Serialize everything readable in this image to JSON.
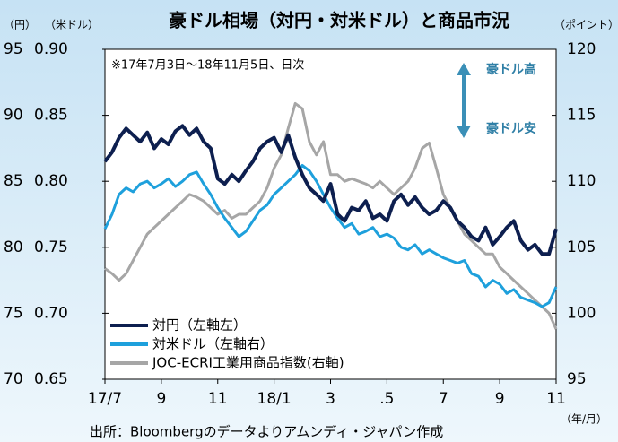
{
  "chart_data": {
    "type": "line",
    "title": "豪ドル相場（対円・対米ドル）と商品市況",
    "y_unit": "（円）",
    "y3_unit": "（米ドル）",
    "y2_unit": "（ポイント）",
    "x_unit": "（年/月）",
    "note": "※17年7月3日～18年11月5日、日次",
    "annotations": [
      "豪ドル高",
      "豪ドル安"
    ],
    "source": "出所：Bloombergのデータよりアムンディ・ジャパン作成",
    "legend": "lower left",
    "xlim": [
      0,
      16
    ],
    "xticks": [
      {
        "value": 0,
        "label": "17/7"
      },
      {
        "value": 2,
        "label": "9"
      },
      {
        "value": 4,
        "label": "11"
      },
      {
        "value": 6,
        "label": "18/1"
      },
      {
        "value": 8,
        "label": "3"
      },
      {
        "value": 10,
        "label": ".5"
      },
      {
        "value": 12,
        "label": "7"
      },
      {
        "value": 14,
        "label": "9"
      },
      {
        "value": 16,
        "label": "11"
      }
    ],
    "ylim": [
      70,
      95
    ],
    "yticks": [
      70,
      75,
      80,
      85,
      90,
      95
    ],
    "y3lim": [
      0.65,
      0.9
    ],
    "y3ticks": [
      0.65,
      {
        "value": 0.7,
        "label": "0.70"
      },
      0.75,
      {
        "value": 0.8,
        "label": "0.80"
      },
      0.85,
      {
        "value": 0.9,
        "label": "0.90"
      }
    ],
    "y2lim": [
      95,
      120
    ],
    "y2ticks": [
      95,
      100,
      105,
      110,
      115,
      120
    ],
    "x": [
      0,
      0.25,
      0.5,
      0.75,
      1,
      1.25,
      1.5,
      1.75,
      2,
      2.25,
      2.5,
      2.75,
      3,
      3.25,
      3.5,
      3.75,
      4,
      4.25,
      4.5,
      4.75,
      5,
      5.25,
      5.5,
      5.75,
      6,
      6.25,
      6.5,
      6.75,
      7,
      7.25,
      7.5,
      7.75,
      8,
      8.25,
      8.5,
      8.75,
      9,
      9.25,
      9.5,
      9.75,
      10,
      10.25,
      10.5,
      10.75,
      11,
      11.25,
      11.5,
      11.75,
      12,
      12.25,
      12.5,
      12.75,
      13,
      13.25,
      13.5,
      13.75,
      14,
      14.25,
      14.5,
      14.75,
      15,
      15.25,
      15.5,
      15.75,
      16
    ],
    "series": [
      {
        "name": "JOC-ECRI工業用商品指数(右軸)",
        "color": "#a6a6a6",
        "axis": "y2",
        "values": [
          103.4,
          103,
          102.5,
          103,
          104,
          105,
          106,
          106.5,
          107,
          107.5,
          108,
          108.5,
          109,
          108.8,
          108.5,
          108,
          107.5,
          107.8,
          107.2,
          107.5,
          107.5,
          108,
          108.5,
          109.5,
          111,
          112,
          114,
          115.9,
          115.5,
          113,
          112,
          113,
          110.5,
          110.5,
          110,
          110.2,
          110,
          109.8,
          109.5,
          110,
          109.5,
          109,
          109.5,
          110,
          111,
          112.5,
          112.9,
          111,
          109,
          108,
          107,
          106,
          105.5,
          105,
          104.5,
          104.5,
          103.5,
          103,
          102.5,
          102,
          101.5,
          101,
          100.5,
          100,
          98.8
        ]
      },
      {
        "name": "対米ドル（左軸右）",
        "color": "#1ea0dc",
        "axis": "y3",
        "values": [
          0.764,
          0.775,
          0.79,
          0.795,
          0.792,
          0.798,
          0.8,
          0.795,
          0.798,
          0.802,
          0.796,
          0.8,
          0.805,
          0.807,
          0.798,
          0.79,
          0.78,
          0.772,
          0.765,
          0.758,
          0.762,
          0.77,
          0.778,
          0.782,
          0.79,
          0.795,
          0.8,
          0.805,
          0.812,
          0.808,
          0.8,
          0.79,
          0.78,
          0.772,
          0.765,
          0.768,
          0.76,
          0.762,
          0.765,
          0.758,
          0.76,
          0.757,
          0.75,
          0.748,
          0.752,
          0.745,
          0.748,
          0.745,
          0.742,
          0.74,
          0.738,
          0.74,
          0.73,
          0.728,
          0.72,
          0.725,
          0.722,
          0.715,
          0.718,
          0.712,
          0.71,
          0.708,
          0.705,
          0.708,
          0.72
        ]
      },
      {
        "name": "対円（左軸左）",
        "color": "#0d1f4f",
        "axis": "y",
        "values": [
          86.5,
          87.2,
          88.3,
          89,
          88.5,
          88,
          88.7,
          87.5,
          88.2,
          87.8,
          88.8,
          89.2,
          88.5,
          89,
          88,
          87.5,
          85.2,
          84.8,
          85.5,
          85,
          85.8,
          86.5,
          87.5,
          88,
          88.3,
          87.2,
          88.5,
          86.8,
          85.5,
          84.5,
          84,
          83.5,
          84.8,
          82.5,
          82,
          83,
          82.8,
          83.5,
          82.2,
          82.5,
          82,
          83.5,
          84,
          83.2,
          83.8,
          83,
          82.5,
          82.8,
          83.5,
          83,
          82,
          81.5,
          80.8,
          80.5,
          81.5,
          80.2,
          80.8,
          81.5,
          82,
          80.5,
          79.8,
          80.2,
          79.5,
          79.5,
          81.4
        ]
      }
    ]
  }
}
